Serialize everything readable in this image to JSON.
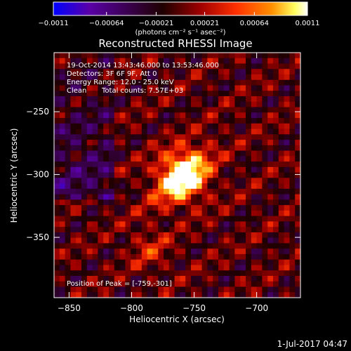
{
  "chart_data": {
    "type": "heatmap",
    "title": "Reconstructed RHESSI Image",
    "xlabel": "Heliocentric X (arcsec)",
    "ylabel": "Heliocentric Y (arcsec)",
    "xlim": [
      -862,
      -665
    ],
    "ylim": [
      -398,
      -203
    ],
    "x_ticks": [
      -850,
      -800,
      -750,
      -700
    ],
    "x_tick_labels": [
      "−850",
      "−800",
      "−750",
      "−700"
    ],
    "y_ticks": [
      -250,
      -300,
      -350
    ],
    "y_tick_labels": [
      "−250",
      "−300",
      "−350"
    ],
    "colorbar": {
      "min": -0.0011,
      "max": 0.0011,
      "ticks": [
        -0.0011,
        -0.00064,
        -0.00021,
        0.00021,
        0.00064,
        0.0011
      ],
      "tick_labels": [
        "−0.0011",
        "−0.00064",
        "−0.00021",
        "0.00021",
        "0.00064",
        "0.0011"
      ],
      "units_label": "(photons cm⁻² s⁻¹ asec⁻²)",
      "colors": [
        "#0000ff",
        "#5a00a8",
        "#1e0000",
        "#a00000",
        "#ff3000",
        "#ff9000",
        "#ffff60",
        "#ffffff"
      ]
    },
    "annotations": {
      "time_range": "19-Oct-2014 13:43:46.000 to 13:53:46.000",
      "detectors": "Detectors: 3F 6F 9F, Att 0",
      "energy_range": "Energy Range: 12.0 - 25.0 keV",
      "method": "Clean",
      "total_counts": "Total counts: 7.57E+03",
      "peak_position": "Position of Peak = [-759,-301]"
    },
    "peak": {
      "x": -759,
      "y": -301
    },
    "grid": false
  },
  "footer": {
    "timestamp": "1-Jul-2017 04:47"
  }
}
